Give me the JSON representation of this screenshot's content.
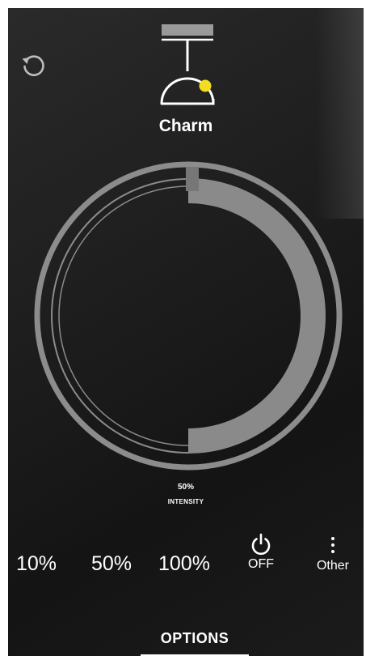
{
  "device": {
    "name": "Charm",
    "lamp_icon": "pendant-lamp-icon",
    "indicator_color": "#f2dc24"
  },
  "header": {
    "reset_icon": "reset-icon"
  },
  "dial": {
    "intensity_percent": 50,
    "value_text": "50%",
    "label": "INTENSITY",
    "ring_color": "#8a8a8a"
  },
  "presets": [
    {
      "label": "10%"
    },
    {
      "label": "50%"
    },
    {
      "label": "100%"
    }
  ],
  "power": {
    "icon": "power-icon",
    "label": "OFF"
  },
  "other": {
    "icon": "more-vertical-icon",
    "label": "Other"
  },
  "footer": {
    "options_label": "OPTIONS"
  }
}
